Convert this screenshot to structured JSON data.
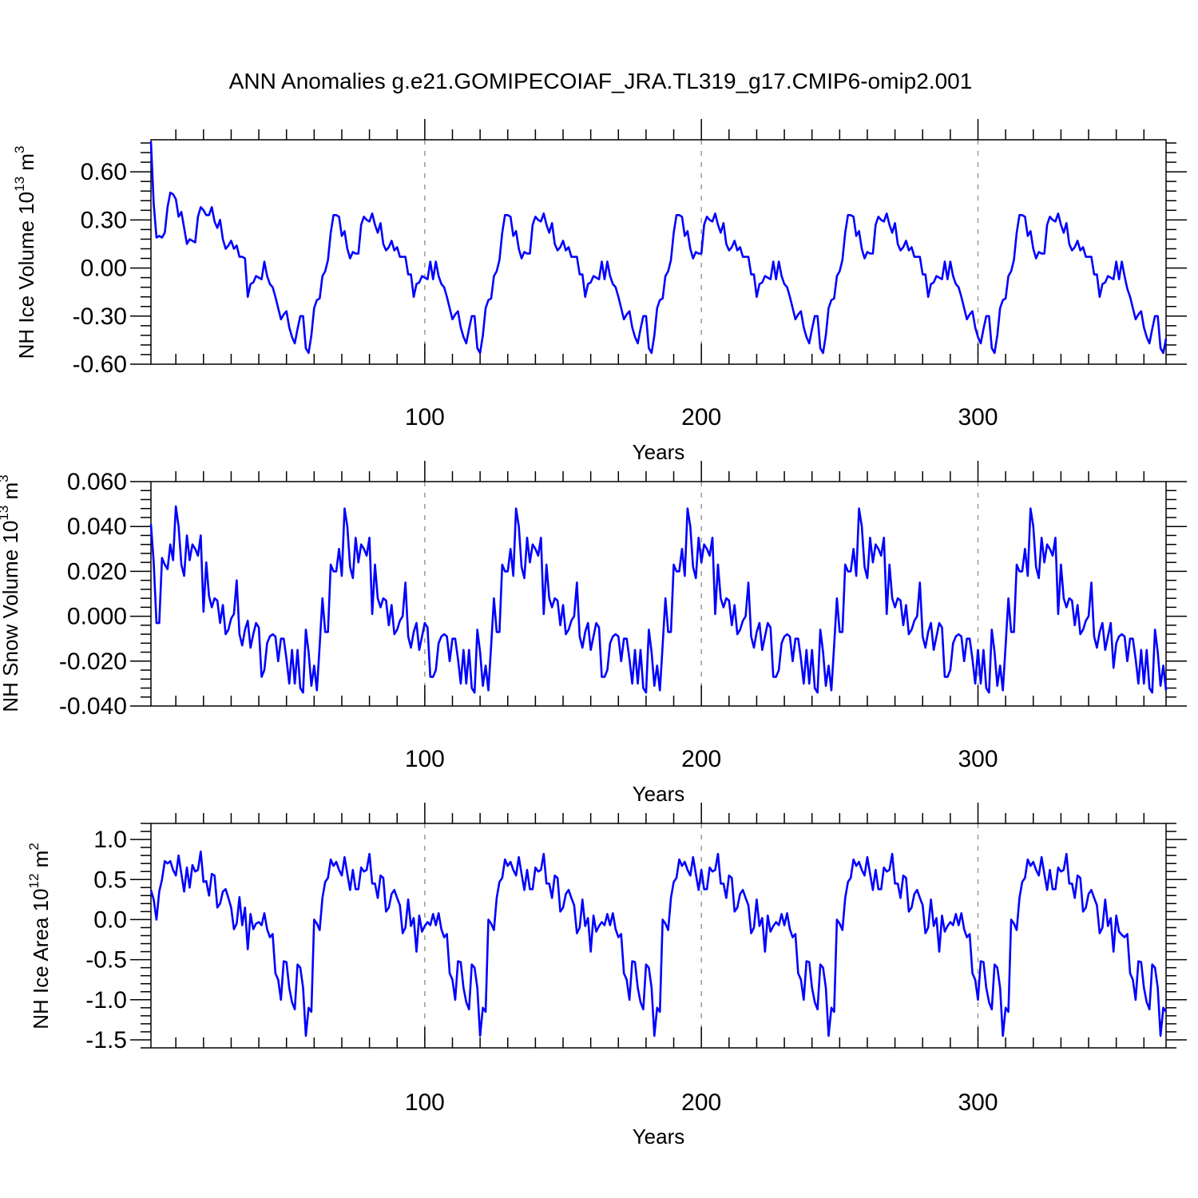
{
  "title": "ANN Anomalies g.e21.GOMIPECOIAF_JRA.TL319_g17.CMIP6-omip2.001",
  "line_color": "#0000ff",
  "chart_data": [
    {
      "type": "line",
      "name": "ice-volume",
      "ylabel_main": "NH Ice Volume 10",
      "ylabel_exp": "13",
      "ylabel_unit": " m",
      "ylabel_unit_exp": "3",
      "xlabel": "Years",
      "xlim": [
        1,
        368
      ],
      "ylim": [
        -0.6,
        0.8
      ],
      "yticks": [
        -0.6,
        -0.3,
        0.0,
        0.3,
        0.6
      ],
      "ytick_labels": [
        "-0.60",
        "-0.30",
        "0.00",
        "0.30",
        "0.60"
      ],
      "xticks": [
        100,
        200,
        300
      ],
      "xtick_labels": [
        "100",
        "200",
        "300"
      ],
      "vlines": [
        100,
        200,
        300
      ],
      "cycle": [
        0.79,
        0.4,
        0.19,
        0.2,
        0.19,
        0.22,
        0.38,
        0.47,
        0.46,
        0.43,
        0.32,
        0.35,
        0.25,
        0.15,
        0.18,
        0.17,
        0.16,
        0.32,
        0.38,
        0.36,
        0.33,
        0.33,
        0.38,
        0.29,
        0.25,
        0.3,
        0.18,
        0.12,
        0.14,
        0.17,
        0.12,
        0.14,
        0.07,
        0.07,
        0.06,
        -0.18,
        -0.1,
        -0.09,
        -0.05,
        -0.06,
        -0.07,
        0.04,
        -0.05,
        -0.1,
        -0.12,
        -0.18,
        -0.25,
        -0.32,
        -0.29,
        -0.27,
        -0.37,
        -0.43,
        -0.47,
        -0.38,
        -0.3,
        -0.3,
        -0.5,
        -0.53,
        -0.42,
        -0.25,
        -0.2,
        -0.19,
        -0.05,
        -0.02,
        0.05,
        0.22,
        0.33,
        0.33,
        0.32,
        0.2,
        0.23,
        0.12,
        0.06,
        0.1,
        0.09,
        0.09,
        0.27,
        0.32,
        0.3,
        0.29,
        0.34,
        0.27,
        0.22,
        0.28,
        0.15,
        0.11,
        0.13,
        0.17,
        0.11,
        0.13,
        0.07,
        0.07,
        0.07,
        -0.04,
        -0.04,
        -0.18,
        -0.1,
        -0.09,
        -0.05,
        -0.06,
        -0.07,
        0.04
      ],
      "tail": [
        -0.13,
        -0.18,
        -0.25,
        -0.32,
        -0.29,
        -0.27,
        -0.37,
        -0.43,
        -0.47,
        -0.38,
        -0.3,
        -0.3,
        -0.5,
        -0.53,
        -0.44
      ]
    },
    {
      "type": "line",
      "name": "snow-volume",
      "ylabel_main": "NH Snow Volume 10",
      "ylabel_exp": "13",
      "ylabel_unit": " m",
      "ylabel_unit_exp": "3",
      "xlabel": "Years",
      "xlim": [
        1,
        368
      ],
      "ylim": [
        -0.04,
        0.06
      ],
      "yticks": [
        -0.04,
        -0.02,
        0.0,
        0.02,
        0.04,
        0.06
      ],
      "ytick_labels": [
        "-0.040",
        "-0.020",
        "0.000",
        "0.020",
        "0.040",
        "0.060"
      ],
      "xticks": [
        100,
        200,
        300
      ],
      "xtick_labels": [
        "100",
        "200",
        "300"
      ],
      "vlines": [
        100,
        200,
        300
      ],
      "cycle": [
        0.041,
        0.024,
        -0.003,
        -0.003,
        0.026,
        0.023,
        0.021,
        0.032,
        0.025,
        0.049,
        0.04,
        0.023,
        0.018,
        0.036,
        0.025,
        0.032,
        0.03,
        0.027,
        0.036,
        0.002,
        0.024,
        0.009,
        0.004,
        0.008,
        0.007,
        -0.003,
        0.005,
        -0.008,
        -0.006,
        -0.001,
        0.001,
        0.016,
        -0.008,
        -0.013,
        -0.006,
        -0.002,
        -0.014,
        -0.008,
        -0.003,
        -0.005,
        -0.027,
        -0.024,
        -0.012,
        -0.009,
        -0.008,
        -0.009,
        -0.02,
        -0.01,
        -0.01,
        -0.019,
        -0.03,
        -0.015,
        -0.03,
        -0.015,
        -0.032,
        -0.034,
        -0.006,
        -0.016,
        -0.031,
        -0.022,
        -0.033,
        -0.013,
        0.008,
        -0.007,
        -0.007,
        0.023,
        0.02,
        0.02,
        0.03,
        0.018,
        0.048,
        0.04,
        0.022,
        0.017,
        0.035,
        0.024,
        0.032,
        0.03,
        0.027,
        0.035,
        0.001,
        0.023,
        0.008,
        0.004,
        0.008,
        0.007,
        -0.004,
        0.005,
        -0.008,
        -0.006,
        -0.002,
        0.0,
        0.015,
        -0.009,
        -0.014,
        -0.007,
        -0.003,
        -0.015,
        -0.009,
        -0.003,
        -0.005,
        -0.027
      ],
      "tail": [
        -0.023,
        -0.012,
        -0.009,
        -0.008,
        -0.009,
        -0.02,
        -0.01,
        -0.01,
        -0.019,
        -0.03,
        -0.015,
        -0.03,
        -0.015,
        -0.032,
        -0.034,
        -0.006,
        -0.016,
        -0.031,
        -0.022,
        -0.033
      ]
    },
    {
      "type": "line",
      "name": "ice-area",
      "ylabel_main": "NH Ice Area 10",
      "ylabel_exp": "12",
      "ylabel_unit": " m",
      "ylabel_unit_exp": "2",
      "xlabel": "Years",
      "xlim": [
        1,
        368
      ],
      "ylim": [
        -1.6,
        1.2
      ],
      "yticks": [
        -1.5,
        -1.0,
        -0.5,
        0.0,
        0.5,
        1.0
      ],
      "ytick_labels": [
        "-1.5",
        "-1.0",
        "-0.5",
        "0.0",
        "0.5",
        "1.0"
      ],
      "xticks": [
        100,
        200,
        300
      ],
      "xtick_labels": [
        "100",
        "200",
        "300"
      ],
      "vlines": [
        100,
        200,
        300
      ],
      "cycle": [
        0.37,
        0.25,
        0.0,
        0.35,
        0.5,
        0.73,
        0.7,
        0.73,
        0.62,
        0.55,
        0.8,
        0.57,
        0.35,
        0.65,
        0.4,
        0.68,
        0.6,
        0.62,
        0.85,
        0.47,
        0.48,
        0.3,
        0.57,
        0.55,
        0.15,
        0.2,
        0.35,
        0.38,
        0.27,
        0.15,
        -0.12,
        -0.05,
        0.28,
        -0.07,
        0.15,
        -0.37,
        0.07,
        -0.12,
        -0.05,
        -0.03,
        -0.07,
        0.08,
        -0.12,
        -0.22,
        -0.18,
        -0.67,
        -0.75,
        -1.0,
        -0.52,
        -0.53,
        -0.85,
        -1.03,
        -1.12,
        -0.56,
        -0.6,
        -0.85,
        -1.45,
        -1.1,
        -1.15,
        0.0,
        -0.05,
        -0.13,
        0.27,
        0.47,
        0.52,
        0.75,
        0.67,
        0.72,
        0.62,
        0.55,
        0.78,
        0.57,
        0.37,
        0.62,
        0.38,
        0.38,
        0.65,
        0.6,
        0.62,
        0.82,
        0.45,
        0.45,
        0.27,
        0.55,
        0.52,
        0.1,
        0.15,
        0.32,
        0.37,
        0.27,
        0.18,
        -0.17,
        -0.1,
        0.25,
        -0.08,
        0.02,
        -0.4,
        0.05,
        -0.15,
        -0.08,
        -0.03,
        -0.07,
        0.07
      ],
      "tail": [
        -0.19,
        -0.22,
        -0.18,
        -0.67,
        -0.75,
        -1.0,
        -0.52,
        -0.53,
        -0.85,
        -1.03,
        -1.12,
        -0.56,
        -0.6,
        -0.85,
        -1.45,
        -1.1,
        -1.15
      ]
    }
  ]
}
